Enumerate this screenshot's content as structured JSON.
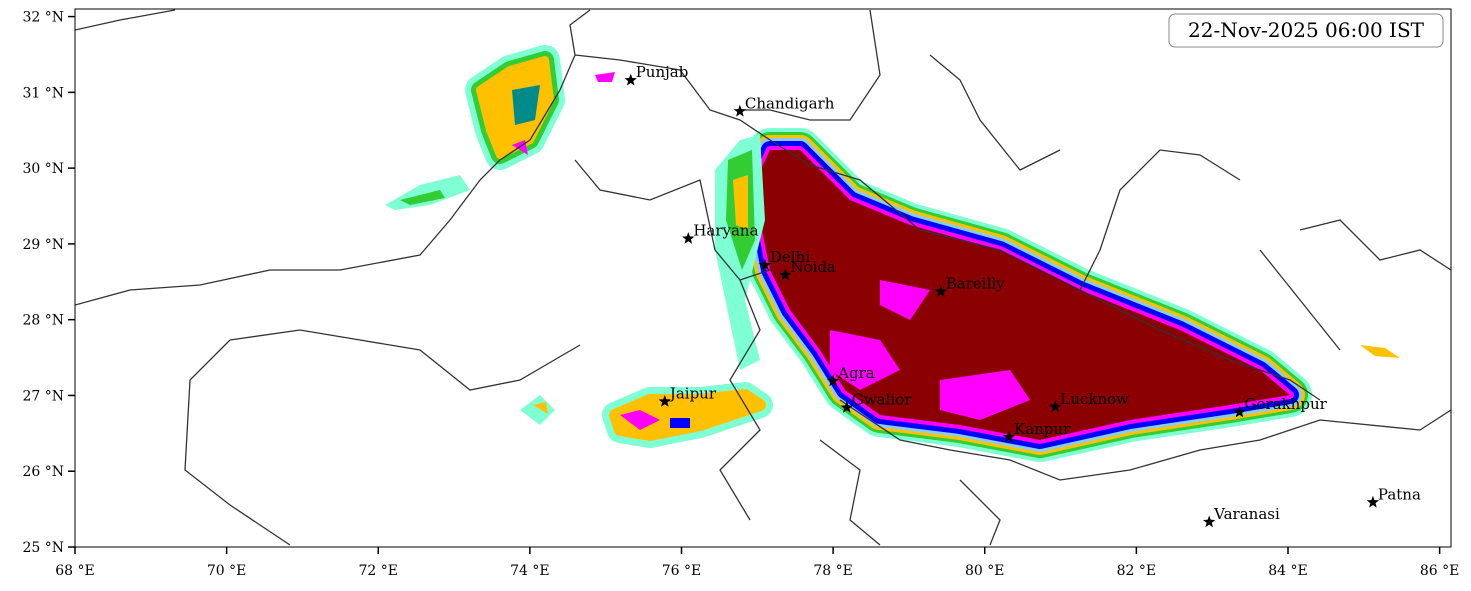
{
  "map": {
    "title": "22-Nov-2025 06:00 IST",
    "xlim": [
      68,
      86.15
    ],
    "ylim": [
      25,
      32.1
    ],
    "xticks": [
      {
        "value": 68,
        "label": "68 °E"
      },
      {
        "value": 70,
        "label": "70 °E"
      },
      {
        "value": 72,
        "label": "72 °E"
      },
      {
        "value": 74,
        "label": "74 °E"
      },
      {
        "value": 76,
        "label": "76 °E"
      },
      {
        "value": 78,
        "label": "78 °E"
      },
      {
        "value": 80,
        "label": "80 °E"
      },
      {
        "value": 82,
        "label": "82 °E"
      },
      {
        "value": 84,
        "label": "84 °E"
      },
      {
        "value": 86,
        "label": "86 °E"
      }
    ],
    "yticks": [
      {
        "value": 25,
        "label": "25 °N"
      },
      {
        "value": 26,
        "label": "26 °N"
      },
      {
        "value": 27,
        "label": "27 °N"
      },
      {
        "value": 28,
        "label": "28 °N"
      },
      {
        "value": 29,
        "label": "29 °N"
      },
      {
        "value": 30,
        "label": "30 °N"
      },
      {
        "value": 31,
        "label": "31 °N"
      },
      {
        "value": 32,
        "label": "32 °N"
      }
    ],
    "cities": [
      {
        "name": "Punjab",
        "lon": 75.33,
        "lat": 31.16
      },
      {
        "name": "Chandigarh",
        "lon": 76.77,
        "lat": 30.75
      },
      {
        "name": "Haryana",
        "lon": 76.09,
        "lat": 29.07
      },
      {
        "name": "Delhi",
        "lon": 77.1,
        "lat": 28.72
      },
      {
        "name": "Noida",
        "lon": 77.37,
        "lat": 28.59
      },
      {
        "name": "Bareilly",
        "lon": 79.42,
        "lat": 28.37
      },
      {
        "name": "Agra",
        "lon": 78.0,
        "lat": 27.19
      },
      {
        "name": "Jaipur",
        "lon": 75.78,
        "lat": 26.92
      },
      {
        "name": "Gwalior",
        "lon": 78.18,
        "lat": 26.84
      },
      {
        "name": "Lucknow",
        "lon": 80.93,
        "lat": 26.85
      },
      {
        "name": "Kanpur",
        "lon": 80.32,
        "lat": 26.45
      },
      {
        "name": "Gorakhpur",
        "lon": 83.36,
        "lat": 26.78
      },
      {
        "name": "Varanasi",
        "lon": 82.96,
        "lat": 25.33
      },
      {
        "name": "Patna",
        "lon": 85.12,
        "lat": 25.59
      }
    ]
  }
}
